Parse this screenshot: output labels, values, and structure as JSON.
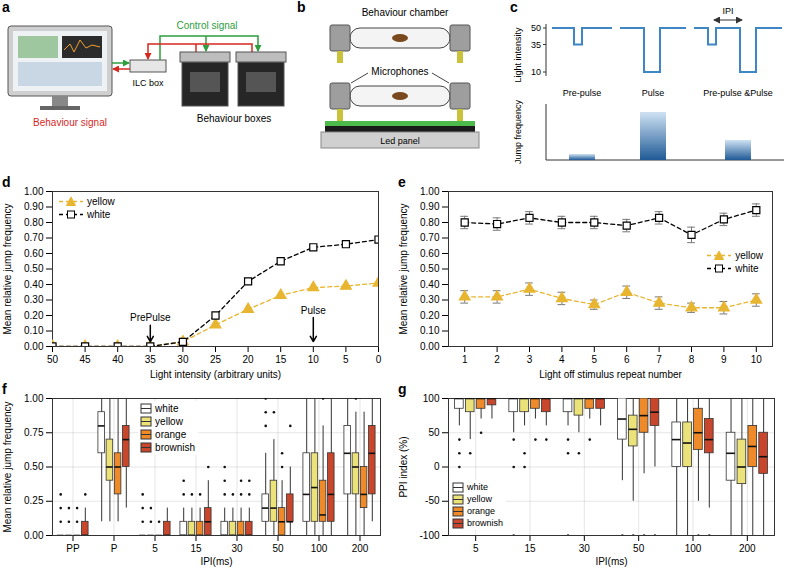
{
  "diagrams": {
    "a": {
      "panel_letter": "a",
      "behaviour_signal": "Behaviour signal",
      "control_signal": "Control signal",
      "ilc_box": "ILC box",
      "behaviour_boxes": "Behaviour boxes"
    },
    "b": {
      "panel_letter": "b",
      "behaviour_chamber": "Behaviour chamber",
      "microphones": "Microphones",
      "led_panel": "Led panel"
    },
    "c": {
      "panel_letter": "c",
      "light_axis_label": "Light intensity",
      "light_ticks": [
        50,
        35,
        10
      ],
      "ipi": "IPI",
      "jump_axis_label": "Jump frequency",
      "conditions": [
        "Pre-pulse",
        "Pulse",
        "Pre-pulse &Pulse"
      ]
    }
  },
  "chart_data": [
    {
      "panel_letter": "d",
      "type": "line",
      "x_label": "Light intensity (arbitrary units)",
      "y_label": "Mean relative jump frequency",
      "x": [
        50,
        45,
        40,
        35,
        30,
        25,
        20,
        15,
        10,
        5,
        0
      ],
      "xlim": [
        50,
        0
      ],
      "xticks": [
        50,
        45,
        40,
        35,
        30,
        25,
        20,
        15,
        10,
        5,
        0
      ],
      "ylim": [
        0,
        1
      ],
      "yticks": [
        {
          "value": 0,
          "label": "0.00"
        },
        {
          "value": 0.1,
          "label": "0.10"
        },
        {
          "value": 0.2,
          "label": "0.20"
        },
        {
          "value": 0.3,
          "label": "0.30"
        },
        {
          "value": 0.4,
          "label": "0.40"
        },
        {
          "value": 0.5,
          "label": "0.50"
        },
        {
          "value": 0.6,
          "label": "0.60"
        },
        {
          "value": 0.7,
          "label": "0.70"
        },
        {
          "value": 0.8,
          "label": "0.80"
        },
        {
          "value": 0.9,
          "label": "0.90"
        },
        {
          "value": 1,
          "label": "1.00"
        }
      ],
      "grid": false,
      "legend": "top-left",
      "series": [
        {
          "name": "yellow",
          "color": "#e8b530",
          "marker": "triangle",
          "line_style": "dashed",
          "values": [
            0,
            0,
            0,
            0,
            0.03,
            0.14,
            0.24,
            0.33,
            0.38,
            0.39,
            0.41
          ]
        },
        {
          "name": "white",
          "color": "#000000",
          "marker": "open-square",
          "line_style": "dashed",
          "values": [
            0,
            0,
            0,
            0,
            0.03,
            0.2,
            0.42,
            0.55,
            0.64,
            0.66,
            0.69
          ]
        }
      ],
      "annotations": [
        {
          "text": "PrePulse",
          "x": 35,
          "y": 0.15
        },
        {
          "text": "Pulse",
          "x": 10,
          "y": 0.2
        }
      ]
    },
    {
      "panel_letter": "e",
      "type": "line",
      "x_label": "Light off stimulus repeat number",
      "y_label": "Mean relative jump frequency",
      "x": [
        1,
        2,
        3,
        4,
        5,
        6,
        7,
        8,
        9,
        10
      ],
      "xlim": [
        0.5,
        10.5
      ],
      "xticks": [
        1,
        2,
        3,
        4,
        5,
        6,
        7,
        8,
        9,
        10
      ],
      "ylim": [
        0,
        1
      ],
      "yticks": [
        {
          "value": 0,
          "label": "0.00"
        },
        {
          "value": 0.1,
          "label": "0.10"
        },
        {
          "value": 0.2,
          "label": "0.20"
        },
        {
          "value": 0.3,
          "label": "0.30"
        },
        {
          "value": 0.4,
          "label": "0.40"
        },
        {
          "value": 0.5,
          "label": "0.50"
        },
        {
          "value": 0.6,
          "label": "0.60"
        },
        {
          "value": 0.7,
          "label": "0.70"
        },
        {
          "value": 0.8,
          "label": "0.80"
        },
        {
          "value": 0.9,
          "label": "0.90"
        },
        {
          "value": 1,
          "label": "1.00"
        }
      ],
      "grid": false,
      "legend": "right",
      "series": [
        {
          "name": "yellow",
          "color": "#e8b530",
          "marker": "triangle",
          "line_style": "dashed",
          "values": [
            0.32,
            0.32,
            0.37,
            0.31,
            0.27,
            0.35,
            0.28,
            0.25,
            0.25,
            0.3
          ],
          "errors": [
            0.04,
            0.04,
            0.04,
            0.04,
            0.03,
            0.04,
            0.04,
            0.03,
            0.04,
            0.04
          ]
        },
        {
          "name": "white",
          "color": "#000000",
          "marker": "open-square",
          "line_style": "dashed",
          "values": [
            0.8,
            0.79,
            0.83,
            0.8,
            0.8,
            0.78,
            0.83,
            0.72,
            0.82,
            0.88
          ],
          "errors": [
            0.04,
            0.04,
            0.04,
            0.04,
            0.04,
            0.04,
            0.04,
            0.05,
            0.04,
            0.04
          ]
        }
      ]
    },
    {
      "panel_letter": "f",
      "type": "box",
      "x_label": "IPI(ms)",
      "y_label": "Mean relative jump frequency",
      "categories": [
        "PP",
        "P",
        "5",
        "15",
        "30",
        "50",
        "100",
        "200"
      ],
      "ylim": [
        0,
        1
      ],
      "yticks": [
        {
          "value": 0,
          "label": "0.00"
        },
        {
          "value": 0.25,
          "label": "0.25"
        },
        {
          "value": 0.5,
          "label": "0.50"
        },
        {
          "value": 0.75,
          "label": "0.75"
        },
        {
          "value": 1,
          "label": "1.00"
        }
      ],
      "grid": true,
      "legend": "top",
      "series": [
        {
          "name": "white",
          "color": "#ffffff",
          "min": [
            0,
            0.1,
            0,
            0,
            0,
            0,
            0,
            0
          ],
          "q1": [
            0,
            0.6,
            0,
            0,
            0,
            0.1,
            0.1,
            0.3
          ],
          "median": [
            0,
            0.8,
            0,
            0,
            0,
            0.2,
            0.3,
            0.6
          ],
          "q3": [
            0,
            0.9,
            0,
            0.1,
            0.1,
            0.3,
            0.6,
            0.8
          ],
          "max": [
            0,
            1,
            0,
            0.2,
            0.2,
            0.6,
            1,
            1
          ],
          "outliers": [
            [
              0.1,
              0.2,
              0.3
            ],
            [],
            [
              0.1,
              0.2,
              0.3
            ],
            [
              0.3,
              0.4
            ],
            [
              0.3,
              0.4,
              0.5
            ],
            [
              0.8,
              0.9,
              1
            ],
            [],
            []
          ]
        },
        {
          "name": "yellow",
          "color": "#ece27a",
          "min": [
            0,
            0.1,
            0,
            0,
            0,
            0,
            0,
            0
          ],
          "q1": [
            0,
            0.4,
            0,
            0,
            0,
            0.1,
            0.1,
            0.3
          ],
          "median": [
            0,
            0.5,
            0,
            0,
            0,
            0.2,
            0.35,
            0.5
          ],
          "q3": [
            0,
            0.7,
            0,
            0.1,
            0.1,
            0.4,
            0.6,
            0.6
          ],
          "max": [
            0,
            1,
            0,
            0.2,
            0.2,
            0.7,
            1,
            0.9
          ],
          "outliers": [
            [
              0.1,
              0.2
            ],
            [],
            [
              0.1,
              0.2
            ],
            [
              0.3
            ],
            [
              0.3
            ],
            [
              0.9
            ],
            [],
            [
              1
            ]
          ]
        },
        {
          "name": "orange",
          "color": "#ee8a2a",
          "min": [
            0,
            0.1,
            0,
            0,
            0,
            0,
            0,
            0
          ],
          "q1": [
            0,
            0.3,
            0,
            0,
            0,
            0,
            0.1,
            0.2
          ],
          "median": [
            0,
            0.5,
            0,
            0,
            0,
            0.1,
            0.15,
            0.3
          ],
          "q3": [
            0,
            0.6,
            0,
            0.1,
            0.1,
            0.2,
            0.4,
            0.5
          ],
          "max": [
            0,
            1,
            0,
            0.2,
            0.2,
            0.4,
            0.8,
            0.9
          ],
          "outliers": [
            [
              0.1,
              0.2
            ],
            [],
            [
              0.1
            ],
            [
              0.3
            ],
            [
              0.3,
              0.4
            ],
            [
              0.5,
              0.6
            ],
            [
              1
            ],
            []
          ]
        },
        {
          "name": "brownish",
          "color": "#c8462c",
          "min": [
            0,
            0.2,
            0,
            0,
            0,
            0,
            0,
            0.1
          ],
          "q1": [
            0,
            0.5,
            0,
            0,
            0,
            0.1,
            0.1,
            0.3
          ],
          "median": [
            0,
            0.7,
            0,
            0.1,
            0,
            0.1,
            0.3,
            0.6
          ],
          "q3": [
            0.1,
            0.8,
            0.1,
            0.2,
            0.1,
            0.3,
            0.6,
            0.8
          ],
          "max": [
            0.2,
            1,
            0.2,
            0.4,
            0.2,
            0.5,
            1,
            1
          ],
          "outliers": [
            [
              0.3
            ],
            [],
            [],
            [
              0.5
            ],
            [
              0.3,
              0.4
            ],
            [
              0.8
            ],
            [],
            []
          ]
        }
      ]
    },
    {
      "panel_letter": "g",
      "type": "box",
      "x_label": "IPI(ms)",
      "y_label": "PPI index (%)",
      "categories": [
        "5",
        "15",
        "30",
        "50",
        "100",
        "200"
      ],
      "ylim": [
        -100,
        100
      ],
      "yticks": [
        -100,
        -50,
        0,
        50,
        100
      ],
      "grid": true,
      "legend": "bottom-left",
      "series": [
        {
          "name": "white",
          "color": "#ffffff",
          "min": [
            60,
            50,
            60,
            -20,
            -100,
            -100
          ],
          "q1": [
            85,
            80,
            80,
            40,
            0,
            -20
          ],
          "median": [
            100,
            100,
            100,
            70,
            40,
            20
          ],
          "q3": [
            100,
            100,
            100,
            100,
            65,
            50
          ],
          "max": [
            100,
            100,
            100,
            100,
            100,
            100
          ],
          "outliers": [
            [
              40,
              20,
              0
            ],
            [
              40,
              0,
              -100
            ],
            [
              40,
              20,
              -100
            ],
            [
              -100
            ],
            [],
            []
          ]
        },
        {
          "name": "yellow",
          "color": "#ece27a",
          "min": [
            40,
            60,
            50,
            -50,
            -100,
            -100
          ],
          "q1": [
            80,
            80,
            75,
            30,
            0,
            -25
          ],
          "median": [
            100,
            100,
            100,
            55,
            35,
            0
          ],
          "q3": [
            100,
            100,
            100,
            75,
            65,
            40
          ],
          "max": [
            100,
            100,
            100,
            100,
            100,
            100
          ],
          "outliers": [
            [
              20
            ],
            [
              20,
              0
            ],
            [
              20
            ],
            [
              -100
            ],
            [],
            []
          ]
        },
        {
          "name": "orange",
          "color": "#ee8a2a",
          "min": [
            70,
            70,
            70,
            -10,
            -50,
            -100
          ],
          "q1": [
            85,
            85,
            85,
            50,
            25,
            0
          ],
          "median": [
            100,
            100,
            100,
            75,
            50,
            30
          ],
          "q3": [
            100,
            100,
            100,
            100,
            85,
            60
          ],
          "max": [
            100,
            100,
            100,
            100,
            100,
            100
          ],
          "outliers": [
            [
              50
            ],
            [
              40
            ],
            [
              40
            ],
            [
              -100
            ],
            [
              -100
            ],
            []
          ]
        },
        {
          "name": "brownish",
          "color": "#c8462c",
          "min": [
            70,
            60,
            60,
            0,
            -60,
            -100
          ],
          "q1": [
            90,
            80,
            85,
            60,
            20,
            -10
          ],
          "median": [
            100,
            100,
            100,
            80,
            40,
            15
          ],
          "q3": [
            100,
            100,
            100,
            100,
            70,
            50
          ],
          "max": [
            100,
            100,
            100,
            100,
            100,
            100
          ],
          "outliers": [
            [],
            [
              40
            ],
            [],
            [
              -100
            ],
            [
              -100
            ],
            []
          ]
        }
      ]
    }
  ]
}
